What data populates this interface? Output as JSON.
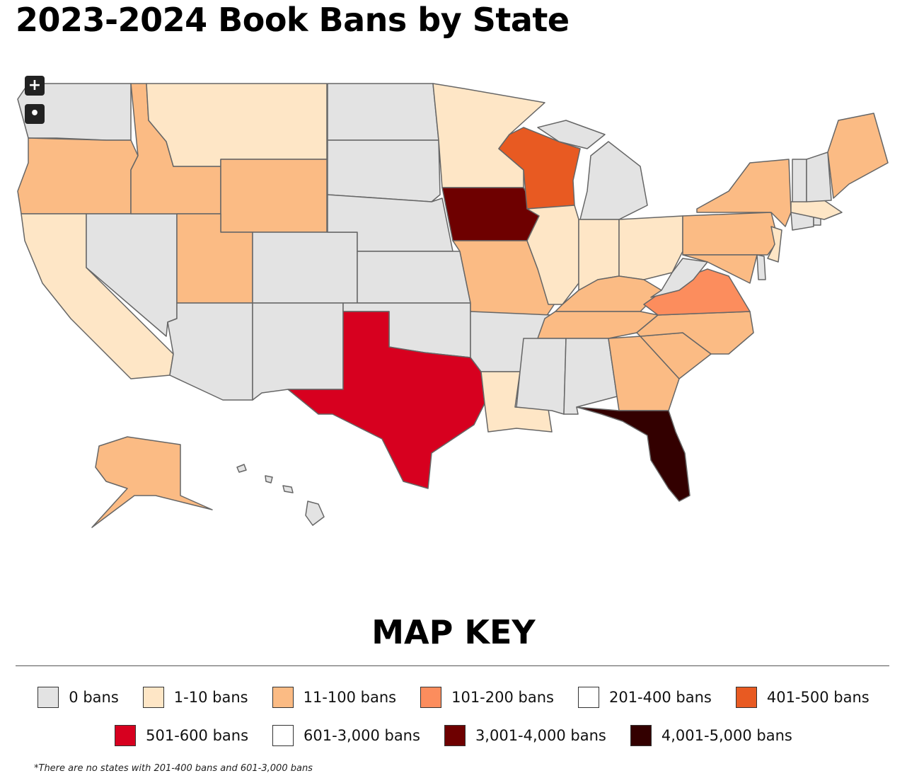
{
  "title": "2023-2024 Book Bans by State",
  "legend": {
    "title": "MAP KEY",
    "items": [
      {
        "label": "0 bans",
        "color": "#e3e3e3"
      },
      {
        "label": "1-10 bans",
        "color": "#fee6c6"
      },
      {
        "label": "11-100 bans",
        "color": "#fbbb84"
      },
      {
        "label": "101-200 bans",
        "color": "#fc8d5d"
      },
      {
        "label": "201-400 bans",
        "color": "#ffffff"
      },
      {
        "label": "401-500 bans",
        "color": "#e85a22"
      },
      {
        "label": "501-600 bans",
        "color": "#d7001f"
      },
      {
        "label": "601-3,000 bans",
        "color": "#ffffff"
      },
      {
        "label": "3,001-4,000 bans",
        "color": "#6e0000"
      },
      {
        "label": "4,001-5,000 bans",
        "color": "#330000"
      }
    ]
  },
  "footnote": "*There are no states with 201-400 bans and 601-3,000 bans"
}
